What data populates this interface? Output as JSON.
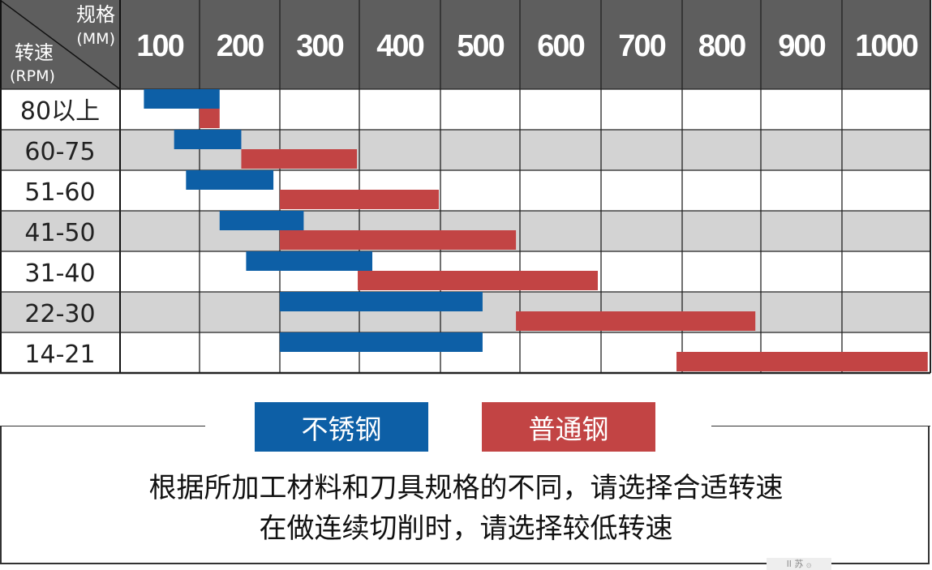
{
  "chart_data": {
    "type": "bar",
    "corner": {
      "col_header": "规格",
      "col_unit": "(MM)",
      "row_header": "转速",
      "row_unit": "(RPM)"
    },
    "x_labels": [
      "100",
      "200",
      "300",
      "400",
      "500",
      "600",
      "700",
      "800",
      "900",
      "1000"
    ],
    "rows": [
      "80以上",
      "60-75",
      "51-60",
      "41-50",
      "31-40",
      "22-30",
      "14-21"
    ],
    "series": [
      {
        "name": "不锈钢",
        "color": "#0d5fa6",
        "ranges": [
          [
            30,
            125
          ],
          [
            68,
            152
          ],
          [
            83,
            192
          ],
          [
            125,
            230
          ],
          [
            158,
            316
          ],
          [
            200,
            453
          ],
          [
            200,
            453
          ]
        ]
      },
      {
        "name": "普通钢",
        "color": "#c24444",
        "ranges": [
          [
            100,
            125
          ],
          [
            152,
            297
          ],
          [
            200,
            398
          ],
          [
            200,
            495
          ],
          [
            298,
            596
          ],
          [
            495,
            793
          ],
          [
            693,
            997
          ]
        ]
      }
    ]
  },
  "legend": {
    "stainless_label": "不锈钢",
    "ordinary_label": "普通钢",
    "stainless_color": "#0d5fa6",
    "ordinary_color": "#c24444"
  },
  "notes": {
    "line1": "根据所加工材料和刀具规格的不同，请选择合适转速",
    "line2": "在做连续切削时，请选择较低转速"
  },
  "watermark": "ll 苏 ۞"
}
